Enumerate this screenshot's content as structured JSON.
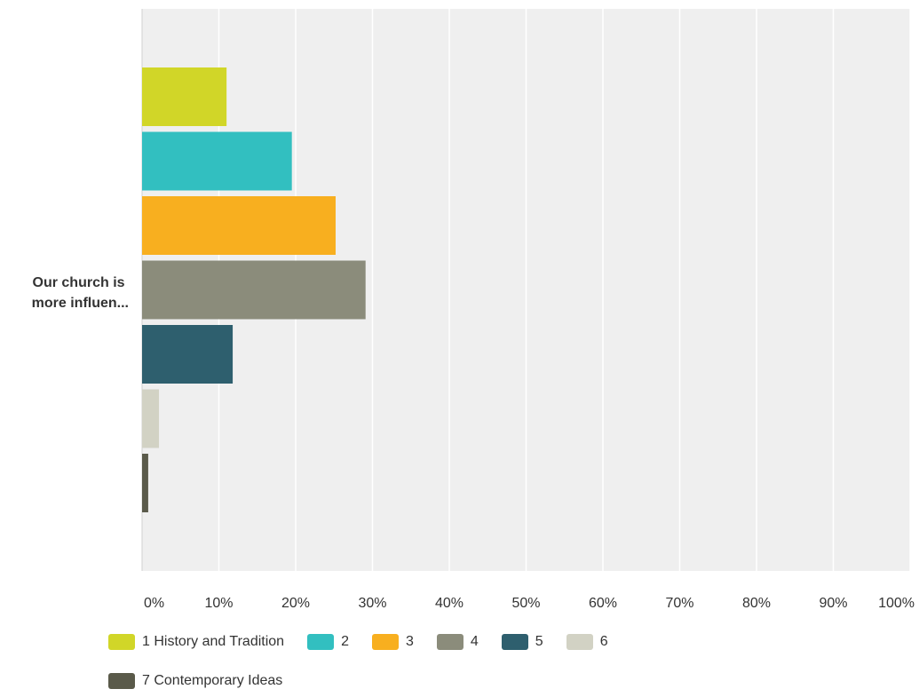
{
  "chart_data": {
    "type": "bar",
    "orientation": "horizontal",
    "categories": [
      "Our church is more influen..."
    ],
    "category_lines": [
      "Our church is",
      "more influen..."
    ],
    "series": [
      {
        "name": "1 History and Tradition",
        "values": [
          11
        ],
        "color": "#d1d628"
      },
      {
        "name": "2",
        "values": [
          19.5
        ],
        "color": "#32bfc0"
      },
      {
        "name": "3",
        "values": [
          25.2
        ],
        "color": "#f8af1f"
      },
      {
        "name": "4",
        "values": [
          29.1
        ],
        "color": "#8b8c7b"
      },
      {
        "name": "5",
        "values": [
          11.8
        ],
        "color": "#2e5f6e"
      },
      {
        "name": "6",
        "values": [
          2.2
        ],
        "color": "#d2d2c4"
      },
      {
        "name": "7 Contemporary Ideas",
        "values": [
          0.8
        ],
        "color": "#5a5a4a"
      }
    ],
    "x_ticks": [
      "0%",
      "10%",
      "20%",
      "30%",
      "40%",
      "50%",
      "60%",
      "70%",
      "80%",
      "90%",
      "100%"
    ],
    "xlim": [
      0,
      100
    ],
    "grid": true,
    "legend_position": "bottom",
    "plot_background": "#efefef",
    "grid_color": "#ffffff"
  }
}
